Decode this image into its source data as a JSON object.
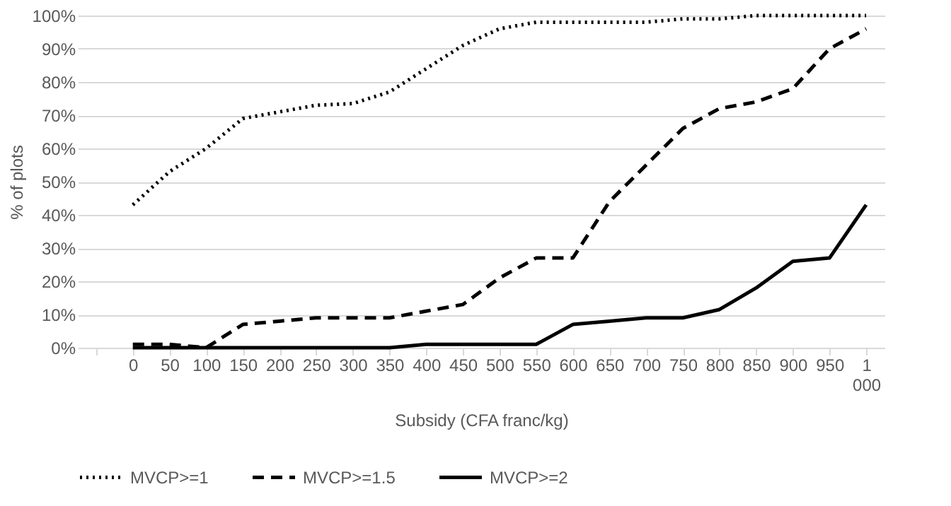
{
  "chart_data": {
    "type": "line",
    "xlabel": "Subsidy (CFA franc/kg)",
    "ylabel": "% of plots",
    "categories": [
      null,
      "0",
      "50",
      "100",
      "150",
      "200",
      "250",
      "300",
      "350",
      "400",
      "450",
      "500",
      "550",
      "600",
      "650",
      "700",
      "750",
      "800",
      "850",
      "900",
      "950",
      "1 000"
    ],
    "series": [
      {
        "name": "MVCP>=1",
        "color": "#000000",
        "line_style": "dotted",
        "values": [
          null,
          43,
          53,
          60,
          69,
          71,
          73,
          73.5,
          77,
          84,
          91,
          96,
          98,
          98,
          98,
          98,
          99,
          99,
          100,
          100,
          100,
          100
        ]
      },
      {
        "name": "MVCP>=1.5",
        "color": "#000000",
        "line_style": "dashed",
        "values": [
          null,
          1,
          1,
          0,
          7,
          8,
          9,
          9,
          9,
          11,
          13,
          21,
          27,
          27,
          44,
          55,
          66,
          72,
          74,
          78,
          90,
          96
        ]
      },
      {
        "name": "MVCP>=2",
        "color": "#000000",
        "line_style": "solid",
        "values": [
          null,
          0,
          0,
          0,
          0,
          0,
          0,
          0,
          0,
          1,
          1,
          1,
          1,
          7,
          8,
          9,
          9,
          11.5,
          18,
          26,
          27,
          43
        ]
      }
    ],
    "ylim": [
      0,
      100
    ],
    "yticks": [
      {
        "value": 0,
        "label": "0%"
      },
      {
        "value": 10,
        "label": "10%"
      },
      {
        "value": 20,
        "label": "20%"
      },
      {
        "value": 30,
        "label": "30%"
      },
      {
        "value": 40,
        "label": "40%"
      },
      {
        "value": 50,
        "label": "50%"
      },
      {
        "value": 60,
        "label": "60%"
      },
      {
        "value": 70,
        "label": "70%"
      },
      {
        "value": 80,
        "label": "80%"
      },
      {
        "value": 90,
        "label": "90%"
      },
      {
        "value": 100,
        "label": "100%"
      }
    ],
    "grid": "y",
    "legend": "bottom",
    "marker": "none"
  }
}
